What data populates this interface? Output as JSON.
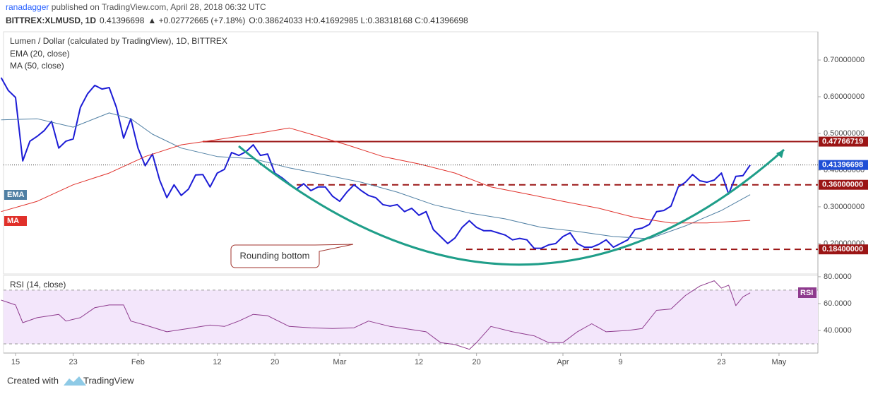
{
  "header": {
    "user": "ranadagger",
    "published": " published on TradingView.com, April 28, 2018 06:32 UTC",
    "symbol": "BITTREX:XLMUSD, 1D",
    "price": "0.41396698",
    "change": "▲ +0.02772665 (+7.18%)",
    "ohlc": "O:0.38624033 H:0.41692985 L:0.38318168 C:0.41396698"
  },
  "chart_data": [
    {
      "type": "line",
      "title": "Lumen / Dollar (calculated by TradingView), 1D, BITTREX",
      "xlim": [
        12.33,
        125.4
      ],
      "xticks": [
        {
          "value": 14,
          "label": "15"
        },
        {
          "value": 22,
          "label": "23"
        },
        {
          "value": 31,
          "label": "Feb"
        },
        {
          "value": 42,
          "label": "12"
        },
        {
          "value": 50,
          "label": "20"
        },
        {
          "value": 59,
          "label": "Mar"
        },
        {
          "value": 70,
          "label": "12"
        },
        {
          "value": 78,
          "label": "20"
        },
        {
          "value": 90,
          "label": "Apr"
        },
        {
          "value": 98,
          "label": "9"
        },
        {
          "value": 112,
          "label": "23"
        },
        {
          "value": 120,
          "label": "May"
        }
      ],
      "ylim": [
        0.117,
        0.777
      ],
      "yticks": [
        {
          "value": 0.2,
          "label": "0.20000000"
        },
        {
          "value": 0.3,
          "label": "0.30000000"
        },
        {
          "value": 0.4,
          "label": "0.40000000"
        },
        {
          "value": 0.5,
          "label": "0.50000000"
        },
        {
          "value": 0.6,
          "label": "0.60000000"
        },
        {
          "value": 0.7,
          "label": "0.70000000"
        }
      ],
      "series": [
        {
          "color": "#1c1cd6",
          "width": 2,
          "x": [
            12,
            13,
            14,
            15,
            16,
            17,
            18,
            19,
            20,
            21,
            22,
            23,
            24,
            25,
            26,
            27,
            28,
            29,
            30,
            31,
            32,
            33,
            34,
            35,
            36,
            37,
            38,
            39,
            40,
            41,
            42,
            43,
            44,
            45,
            46,
            47,
            48,
            49,
            50,
            51,
            52,
            53,
            54,
            55,
            56,
            57,
            58,
            59,
            60,
            61,
            62,
            63,
            64,
            65,
            66,
            67,
            68,
            69,
            70,
            71,
            72,
            73,
            74,
            75,
            76,
            77,
            78,
            79,
            80,
            81,
            82,
            83,
            84,
            85,
            86,
            87,
            88,
            89,
            90,
            91,
            92,
            93,
            94,
            95,
            96,
            97,
            98,
            99,
            100,
            101,
            102,
            103,
            104,
            105,
            106,
            107,
            108,
            109,
            110,
            111,
            112,
            113,
            114,
            115,
            116
          ],
          "values": [
            0.652,
            0.617,
            0.598,
            0.425,
            0.479,
            0.492,
            0.508,
            0.533,
            0.46,
            0.479,
            0.485,
            0.571,
            0.608,
            0.631,
            0.621,
            0.625,
            0.571,
            0.487,
            0.54,
            0.46,
            0.412,
            0.444,
            0.373,
            0.325,
            0.36,
            0.331,
            0.348,
            0.387,
            0.388,
            0.354,
            0.392,
            0.402,
            0.448,
            0.44,
            0.45,
            0.469,
            0.44,
            0.444,
            0.392,
            0.379,
            0.363,
            0.348,
            0.363,
            0.344,
            0.354,
            0.354,
            0.329,
            0.315,
            0.34,
            0.36,
            0.344,
            0.331,
            0.325,
            0.306,
            0.302,
            0.306,
            0.287,
            0.296,
            0.277,
            0.287,
            0.238,
            0.219,
            0.2,
            0.215,
            0.244,
            0.262,
            0.244,
            0.235,
            0.235,
            0.229,
            0.223,
            0.21,
            0.214,
            0.21,
            0.187,
            0.187,
            0.196,
            0.2,
            0.219,
            0.229,
            0.2,
            0.19,
            0.19,
            0.198,
            0.21,
            0.19,
            0.2,
            0.21,
            0.238,
            0.242,
            0.252,
            0.287,
            0.29,
            0.302,
            0.354,
            0.367,
            0.388,
            0.371,
            0.367,
            0.373,
            0.392,
            0.335,
            0.383,
            0.385,
            0.41396698
          ]
        },
        {
          "name": "EMA (20, close)",
          "tag": "EMA",
          "color": "#4f7fa3",
          "width": 1,
          "x": [
            12,
            17,
            22,
            27,
            30,
            33,
            37,
            42,
            47,
            52,
            57,
            62,
            67,
            72,
            77,
            82,
            87,
            92,
            97,
            102,
            107,
            112,
            116
          ],
          "values": [
            0.537,
            0.54,
            0.517,
            0.556,
            0.54,
            0.498,
            0.46,
            0.437,
            0.431,
            0.406,
            0.387,
            0.367,
            0.34,
            0.306,
            0.283,
            0.267,
            0.244,
            0.233,
            0.219,
            0.213,
            0.248,
            0.29,
            0.333
          ]
        },
        {
          "name": "MA (50, close)",
          "tag": "MA",
          "color": "#e0302a",
          "width": 1,
          "x": [
            12,
            17,
            22,
            27,
            32,
            37,
            42,
            47,
            52,
            55,
            60,
            65,
            70,
            75,
            80,
            85,
            90,
            95,
            100,
            105,
            110,
            116
          ],
          "values": [
            0.287,
            0.315,
            0.36,
            0.392,
            0.437,
            0.469,
            0.483,
            0.498,
            0.515,
            0.498,
            0.469,
            0.437,
            0.417,
            0.392,
            0.354,
            0.335,
            0.315,
            0.296,
            0.271,
            0.256,
            0.256,
            0.263
          ]
        }
      ],
      "levels": [
        {
          "value": 0.47766719,
          "label": "0.47766719",
          "style": "solid",
          "color": "#9b1515"
        },
        {
          "value": 0.36,
          "label": "0.36000000",
          "style": "dashed",
          "color": "#9b1515"
        },
        {
          "value": 0.184,
          "label": "0.18400000",
          "style": "dashed",
          "color": "#9b1515"
        }
      ],
      "last_price": {
        "value": 0.41396698,
        "label": "0.41396698",
        "color": "#1f4fd6"
      },
      "annotation": "Rounding bottom"
    },
    {
      "type": "line",
      "title": "RSI (14, close)",
      "tag": "RSI",
      "ylim": [
        23.2,
        81
      ],
      "yticks": [
        {
          "value": 40,
          "label": "40.0000"
        },
        {
          "value": 60,
          "label": "60.0000"
        },
        {
          "value": 80,
          "label": "80.0000"
        }
      ],
      "bands": [
        30,
        70
      ],
      "series": [
        {
          "color": "#8e3b8e",
          "width": 1,
          "x": [
            12,
            14,
            15,
            17,
            20,
            21,
            23,
            25,
            27,
            29,
            30,
            32,
            35,
            38,
            41,
            43,
            45,
            47,
            49,
            52,
            55,
            58,
            61,
            63,
            66,
            68,
            71,
            73,
            75,
            77,
            78,
            80,
            83,
            86,
            88,
            90,
            92,
            94,
            96,
            99,
            101,
            103,
            105,
            107,
            109,
            111,
            112,
            113,
            114,
            115,
            116
          ],
          "values": [
            62.6,
            59,
            45.8,
            49.5,
            52,
            47,
            49.5,
            57,
            59,
            59,
            47,
            44,
            39,
            41.5,
            44,
            43,
            47,
            52,
            51,
            43,
            42,
            41.5,
            42,
            47,
            43,
            41.5,
            39,
            31,
            29.5,
            26,
            31,
            43,
            39,
            36,
            31,
            31,
            39,
            45,
            39,
            40,
            41.5,
            55,
            56,
            66,
            73,
            77,
            71.5,
            73.7,
            58.5,
            65,
            68
          ]
        }
      ]
    }
  ],
  "footer": {
    "created": "Created with",
    "brand": "TradingView"
  }
}
